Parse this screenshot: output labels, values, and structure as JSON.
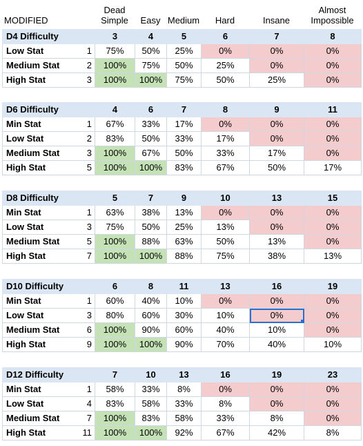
{
  "header": {
    "modified_label": "MODIFIED",
    "difficulty_levels": [
      "Dead Simple",
      "Easy",
      "Medium",
      "Hard",
      "Insane",
      "Almost Impossible"
    ]
  },
  "colors": {
    "header_band": "#dae6f3",
    "success": "#c4e2b6",
    "failure": "#f4cccd",
    "selection": "#2a6fd0"
  },
  "sections": [
    {
      "title": "D4 Difficulty",
      "targets": [
        "3",
        "4",
        "5",
        "6",
        "7",
        "8"
      ],
      "rows": [
        {
          "label": "Low Stat",
          "value": "1",
          "cells": [
            "75%",
            "50%",
            "25%",
            "0%",
            "0%",
            "0%"
          ]
        },
        {
          "label": "Medium Stat",
          "value": "2",
          "cells": [
            "100%",
            "75%",
            "50%",
            "25%",
            "0%",
            "0%"
          ]
        },
        {
          "label": "High Stat",
          "value": "3",
          "cells": [
            "100%",
            "100%",
            "75%",
            "50%",
            "25%",
            "0%"
          ]
        }
      ]
    },
    {
      "title": "D6 Difficulty",
      "targets": [
        "4",
        "6",
        "7",
        "8",
        "9",
        "11"
      ],
      "rows": [
        {
          "label": "Min Stat",
          "value": "1",
          "cells": [
            "67%",
            "33%",
            "17%",
            "0%",
            "0%",
            "0%"
          ]
        },
        {
          "label": "Low Stat",
          "value": "2",
          "cells": [
            "83%",
            "50%",
            "33%",
            "17%",
            "0%",
            "0%"
          ]
        },
        {
          "label": "Medium Stat",
          "value": "3",
          "cells": [
            "100%",
            "67%",
            "50%",
            "33%",
            "17%",
            "0%"
          ]
        },
        {
          "label": "High Stat",
          "value": "5",
          "cells": [
            "100%",
            "100%",
            "83%",
            "67%",
            "50%",
            "17%"
          ]
        }
      ]
    },
    {
      "title": "D8 Difficulty",
      "targets": [
        "5",
        "7",
        "9",
        "10",
        "13",
        "15"
      ],
      "rows": [
        {
          "label": "Min Stat",
          "value": "1",
          "cells": [
            "63%",
            "38%",
            "13%",
            "0%",
            "0%",
            "0%"
          ]
        },
        {
          "label": "Low Stat",
          "value": "3",
          "cells": [
            "75%",
            "50%",
            "25%",
            "13%",
            "0%",
            "0%"
          ]
        },
        {
          "label": "Medium Stat",
          "value": "5",
          "cells": [
            "100%",
            "88%",
            "63%",
            "50%",
            "13%",
            "0%"
          ]
        },
        {
          "label": "High Stat",
          "value": "7",
          "cells": [
            "100%",
            "100%",
            "88%",
            "75%",
            "38%",
            "13%"
          ]
        }
      ]
    },
    {
      "title": "D10 Difficulty",
      "targets": [
        "6",
        "8",
        "11",
        "13",
        "16",
        "19"
      ],
      "rows": [
        {
          "label": "Min Stat",
          "value": "1",
          "cells": [
            "60%",
            "40%",
            "10%",
            "0%",
            "0%",
            "0%"
          ]
        },
        {
          "label": "Low Stat",
          "value": "3",
          "cells": [
            "80%",
            "60%",
            "30%",
            "10%",
            "0%",
            "0%"
          ]
        },
        {
          "label": "Medium Stat",
          "value": "6",
          "cells": [
            "100%",
            "90%",
            "60%",
            "40%",
            "10%",
            "0%"
          ]
        },
        {
          "label": "High Stat",
          "value": "9",
          "cells": [
            "100%",
            "100%",
            "90%",
            "70%",
            "40%",
            "10%"
          ]
        }
      ]
    },
    {
      "title": "D12 Difficulty",
      "targets": [
        "7",
        "10",
        "13",
        "16",
        "19",
        "23"
      ],
      "rows": [
        {
          "label": "Min Stat",
          "value": "1",
          "cells": [
            "58%",
            "33%",
            "8%",
            "0%",
            "0%",
            "0%"
          ]
        },
        {
          "label": "Low Stat",
          "value": "4",
          "cells": [
            "83%",
            "58%",
            "33%",
            "8%",
            "0%",
            "0%"
          ]
        },
        {
          "label": "Medium Stat",
          "value": "7",
          "cells": [
            "100%",
            "83%",
            "58%",
            "33%",
            "8%",
            "0%"
          ]
        },
        {
          "label": "High Stat",
          "value": "11",
          "cells": [
            "100%",
            "100%",
            "92%",
            "67%",
            "42%",
            "8%"
          ]
        }
      ]
    }
  ]
}
